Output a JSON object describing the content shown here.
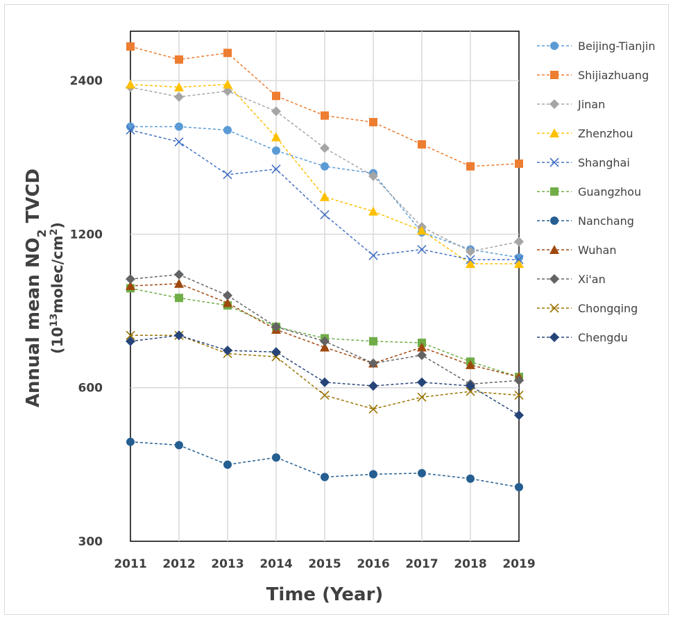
{
  "chart_data": {
    "type": "line",
    "xlabel": "Time (Year)",
    "ylabel": {
      "line1_main": "Annual mean NO",
      "line1_sub": "2",
      "line1_tail": " TVCD",
      "line2_open": "(10",
      "line2_sup": "13",
      "line2_mid": "molec/cm",
      "line2_sup2": "2",
      "line2_close": ")"
    },
    "y_scale": "log",
    "ylim": [
      300,
      3000
    ],
    "yticks": [
      300,
      600,
      1200,
      2400
    ],
    "grid": "vertical",
    "legend_position": "right",
    "x": [
      "2011",
      "2012",
      "2013",
      "2014",
      "2015",
      "2016",
      "2017",
      "2018",
      "2019"
    ],
    "series": [
      {
        "name": "Beijing-Tianjin",
        "color": "#5b9bd5",
        "marker": "circle",
        "values": [
          1950,
          1950,
          1920,
          1750,
          1630,
          1580,
          1210,
          1120,
          1080
        ]
      },
      {
        "name": "Shijiazhuang",
        "color": "#ed7d31",
        "marker": "square",
        "values": [
          2800,
          2640,
          2720,
          2240,
          2050,
          1990,
          1800,
          1630,
          1650
        ]
      },
      {
        "name": "Jinan",
        "color": "#a5a5a5",
        "marker": "diamond",
        "values": [
          2330,
          2230,
          2290,
          2090,
          1770,
          1560,
          1240,
          1110,
          1160
        ]
      },
      {
        "name": "Zhenzhou",
        "color": "#ffc000",
        "marker": "triangle",
        "values": [
          2360,
          2330,
          2360,
          1860,
          1420,
          1330,
          1220,
          1050,
          1050
        ]
      },
      {
        "name": "Shanghai",
        "color": "#4472c4",
        "marker": "x",
        "values": [
          1920,
          1820,
          1570,
          1610,
          1310,
          1090,
          1120,
          1070,
          1070
        ]
      },
      {
        "name": "Guangzhou",
        "color": "#70ad47",
        "marker": "square",
        "values": [
          940,
          900,
          870,
          790,
          750,
          740,
          735,
          675,
          630
        ]
      },
      {
        "name": "Nanchang",
        "color": "#255e91",
        "marker": "circle",
        "values": [
          470,
          463,
          424,
          438,
          401,
          406,
          408,
          398,
          383
        ]
      },
      {
        "name": "Wuhan",
        "color": "#9e480e",
        "marker": "triangle",
        "values": [
          950,
          960,
          880,
          780,
          720,
          670,
          720,
          665,
          630
        ]
      },
      {
        "name": "Xi'an",
        "color": "#636363",
        "marker": "diamond",
        "values": [
          980,
          1000,
          910,
          790,
          740,
          670,
          695,
          610,
          620
        ]
      },
      {
        "name": "Chongqing",
        "color": "#997300",
        "marker": "x",
        "values": [
          760,
          760,
          700,
          690,
          580,
          545,
          575,
          590,
          580
        ]
      },
      {
        "name": "Chengdu",
        "color": "#264478",
        "marker": "diamond",
        "values": [
          740,
          760,
          710,
          705,
          615,
          605,
          615,
          605,
          530
        ]
      }
    ]
  }
}
